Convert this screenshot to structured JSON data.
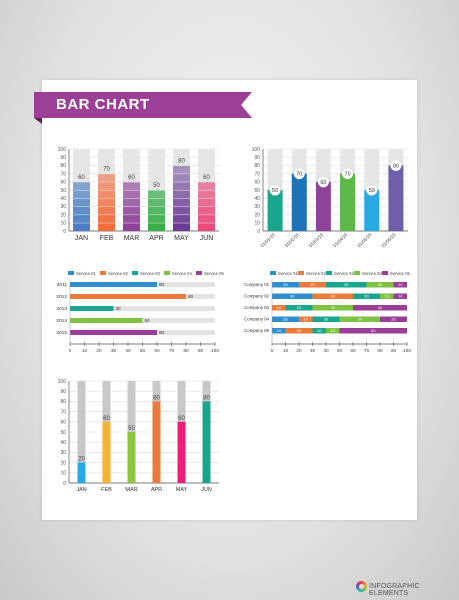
{
  "header": {
    "title": "BAR CHART"
  },
  "footer": {
    "brand": "INFOGRAPHIC ELEMENTS"
  },
  "chart_data": [
    {
      "id": "c1",
      "type": "bar",
      "title": "",
      "categories": [
        "JAN",
        "FEB",
        "MAR",
        "APR",
        "MAY",
        "JUN"
      ],
      "values": [
        60,
        70,
        60,
        50,
        80,
        60
      ],
      "yticks": [
        0,
        10,
        20,
        30,
        40,
        50,
        60,
        70,
        80,
        90,
        100
      ],
      "ylim": [
        0,
        100
      ],
      "colors": [
        "#4a7fc4",
        "#f26b3a",
        "#8e4399",
        "#38b04a",
        "#6a3c97",
        "#ec4a7c"
      ],
      "style": "segmented"
    },
    {
      "id": "c2",
      "type": "bar",
      "title": "",
      "categories": [
        "01/01/15",
        "01/02/15",
        "01/03/15",
        "01/04/15",
        "01/05/15",
        "01/06/15"
      ],
      "values": [
        50,
        70,
        60,
        70,
        50,
        80
      ],
      "yticks": [
        0,
        10,
        20,
        30,
        40,
        50,
        60,
        70,
        80,
        90,
        100
      ],
      "ylim": [
        0,
        100
      ],
      "colors": [
        "#1aa58f",
        "#1d73b8",
        "#8e4399",
        "#5cb847",
        "#27a9e1",
        "#6e5fa8"
      ]
    },
    {
      "id": "c3",
      "type": "bar",
      "orientation": "horizontal",
      "title": "",
      "categories": [
        "2011",
        "2012",
        "2013",
        "2014",
        "2015"
      ],
      "values": [
        60,
        80,
        30,
        50,
        60
      ],
      "xticks": [
        0,
        10,
        20,
        30,
        40,
        50,
        60,
        70,
        80,
        90,
        100
      ],
      "xlim": [
        0,
        100
      ],
      "legend": [
        "Service 01",
        "Service 02",
        "Service 03",
        "Service 04",
        "Service 05"
      ],
      "colors": [
        "#2f8fce",
        "#ec7a3a",
        "#1aa58f",
        "#7fc242",
        "#9a3d96"
      ],
      "legend_position": "top"
    },
    {
      "id": "c4",
      "type": "bar",
      "orientation": "horizontal",
      "stacked": true,
      "title": "",
      "categories": [
        "Company 01",
        "Company 02",
        "Company 03",
        "Company 04",
        "Company 05"
      ],
      "xticks": [
        0,
        10,
        20,
        30,
        40,
        50,
        60,
        70,
        80,
        90,
        100
      ],
      "xlim": [
        0,
        100
      ],
      "legend_position": "top",
      "series": [
        {
          "name": "Service 01",
          "color": "#2f8fce",
          "values": [
            20,
            30,
            0,
            20,
            10
          ]
        },
        {
          "name": "Service 02",
          "color": "#ec7a3a",
          "values": [
            20,
            30,
            10,
            10,
            20
          ]
        },
        {
          "name": "Service 03",
          "color": "#1aa58f",
          "values": [
            30,
            20,
            20,
            20,
            10
          ]
        },
        {
          "name": "Service 04",
          "color": "#7fc242",
          "values": [
            20,
            10,
            30,
            30,
            10
          ]
        },
        {
          "name": "Service 05",
          "color": "#9a3d96",
          "values": [
            10,
            10,
            40,
            20,
            50
          ]
        }
      ]
    },
    {
      "id": "c5",
      "type": "bar",
      "title": "",
      "categories": [
        "JAN",
        "FEB",
        "MAR",
        "APR",
        "MAY",
        "JUN"
      ],
      "values": [
        20,
        60,
        50,
        80,
        60,
        80
      ],
      "yticks": [
        0,
        10,
        20,
        30,
        40,
        50,
        60,
        70,
        80,
        90,
        100
      ],
      "ylim": [
        0,
        100
      ],
      "colors": [
        "#27a9e1",
        "#f5b233",
        "#8cc63f",
        "#ec7a3a",
        "#ec1e79",
        "#1aa58f"
      ]
    }
  ]
}
